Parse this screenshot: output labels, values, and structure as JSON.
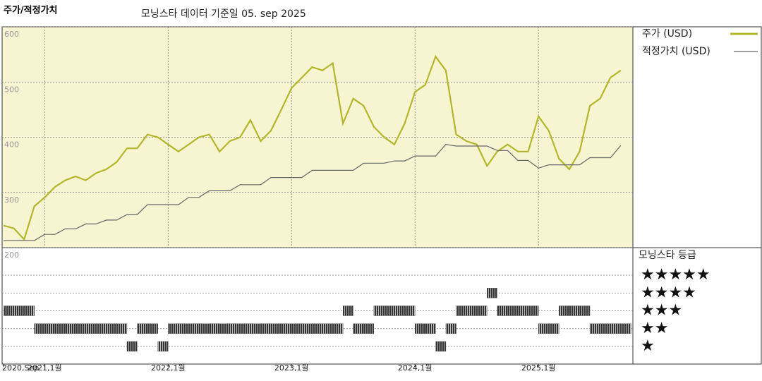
{
  "chart_data": [
    {
      "type": "line",
      "title": "주가/적정가치",
      "subtitle": "모닝스타 데이터 기준일 05. sep 2025",
      "x": [
        "2020-09",
        "2020-10",
        "2020-11",
        "2020-12",
        "2021-01",
        "2021-02",
        "2021-03",
        "2021-04",
        "2021-05",
        "2021-06",
        "2021-07",
        "2021-08",
        "2021-09",
        "2021-10",
        "2021-11",
        "2021-12",
        "2022-01",
        "2022-02",
        "2022-03",
        "2022-04",
        "2022-05",
        "2022-06",
        "2022-07",
        "2022-08",
        "2022-09",
        "2022-10",
        "2022-11",
        "2022-12",
        "2023-01",
        "2023-02",
        "2023-03",
        "2023-04",
        "2023-05",
        "2023-06",
        "2023-07",
        "2023-08",
        "2023-09",
        "2023-10",
        "2023-11",
        "2023-12",
        "2024-01",
        "2024-02",
        "2024-03",
        "2024-04",
        "2024-05",
        "2024-06",
        "2024-07",
        "2024-08",
        "2024-09",
        "2024-10",
        "2024-11",
        "2024-12",
        "2025-01",
        "2025-02",
        "2025-03",
        "2025-04",
        "2025-05",
        "2025-06",
        "2025-07",
        "2025-08",
        "2025-09"
      ],
      "series": [
        {
          "name": "주가 (USD)",
          "color": "#b3b62b",
          "values": [
            240,
            235,
            215,
            275,
            291,
            310,
            322,
            329,
            322,
            335,
            342,
            355,
            380,
            380,
            405,
            400,
            387,
            374,
            387,
            400,
            405,
            374,
            393,
            400,
            431,
            393,
            412,
            450,
            489,
            508,
            527,
            521,
            534,
            425,
            470,
            457,
            419,
            400,
            387,
            425,
            482,
            495,
            546,
            521,
            405,
            393,
            387,
            348,
            374,
            387,
            374,
            374,
            438,
            412,
            361,
            342,
            374,
            457,
            470,
            508,
            521
          ]
        },
        {
          "name": "적정가치 (USD)",
          "color": "#666666",
          "values": [
            213,
            213,
            213,
            213,
            224,
            224,
            234,
            234,
            243,
            243,
            250,
            250,
            260,
            260,
            278,
            278,
            278,
            278,
            291,
            291,
            303,
            303,
            303,
            314,
            314,
            314,
            327,
            327,
            327,
            327,
            340,
            340,
            340,
            340,
            340,
            353,
            353,
            353,
            357,
            357,
            366,
            366,
            366,
            387,
            384,
            384,
            384,
            384,
            376,
            376,
            358,
            358,
            344,
            350,
            350,
            350,
            350,
            363,
            363,
            363,
            385
          ]
        }
      ],
      "ylim": [
        200,
        600
      ],
      "yticks": [
        200,
        300,
        400,
        500,
        600
      ],
      "xticks": [
        {
          "value": "2020-09",
          "label": "2020,Sep"
        },
        {
          "value": "2021-01",
          "label": "2021,1월"
        },
        {
          "value": "2022-01",
          "label": "2022,1월"
        },
        {
          "value": "2023-01",
          "label": "2023,1월"
        },
        {
          "value": "2024-01",
          "label": "2024,1월"
        },
        {
          "value": "2025-01",
          "label": "2025,1월"
        }
      ],
      "grid": true
    },
    {
      "type": "strip",
      "title": "모닝스타 등급",
      "color": "#333333",
      "x": [
        "2020-09",
        "2020-10",
        "2020-11",
        "2020-12",
        "2021-01",
        "2021-02",
        "2021-03",
        "2021-04",
        "2021-05",
        "2021-06",
        "2021-07",
        "2021-08",
        "2021-09",
        "2021-10",
        "2021-11",
        "2021-12",
        "2022-01",
        "2022-02",
        "2022-03",
        "2022-04",
        "2022-05",
        "2022-06",
        "2022-07",
        "2022-08",
        "2022-09",
        "2022-10",
        "2022-11",
        "2022-12",
        "2023-01",
        "2023-02",
        "2023-03",
        "2023-04",
        "2023-05",
        "2023-06",
        "2023-07",
        "2023-08",
        "2023-09",
        "2023-10",
        "2023-11",
        "2023-12",
        "2024-01",
        "2024-02",
        "2024-03",
        "2024-04",
        "2024-05",
        "2024-06",
        "2024-07",
        "2024-08",
        "2024-09",
        "2024-10",
        "2024-11",
        "2024-12",
        "2025-01",
        "2025-02",
        "2025-03",
        "2025-04",
        "2025-05",
        "2025-06",
        "2025-07",
        "2025-08",
        "2025-09"
      ],
      "values": [
        3,
        3,
        3,
        2,
        2,
        2,
        2,
        2,
        2,
        2,
        2,
        2,
        1,
        2,
        2,
        1,
        2,
        2,
        2,
        2,
        2,
        2,
        2,
        2,
        2,
        2,
        2,
        2,
        2,
        2,
        2,
        2,
        2,
        3,
        2,
        2,
        3,
        3,
        3,
        3,
        2,
        2,
        1,
        2,
        3,
        3,
        3,
        4,
        3,
        3,
        3,
        3,
        2,
        2,
        3,
        3,
        3,
        2,
        2,
        2,
        2
      ],
      "ylim": [
        1,
        5
      ],
      "yticks": [
        {
          "value": 5,
          "label": "★★★★★"
        },
        {
          "value": 4,
          "label": "★★★★"
        },
        {
          "value": 3,
          "label": "★★★"
        },
        {
          "value": 2,
          "label": "★★"
        },
        {
          "value": 1,
          "label": "★"
        }
      ]
    }
  ]
}
